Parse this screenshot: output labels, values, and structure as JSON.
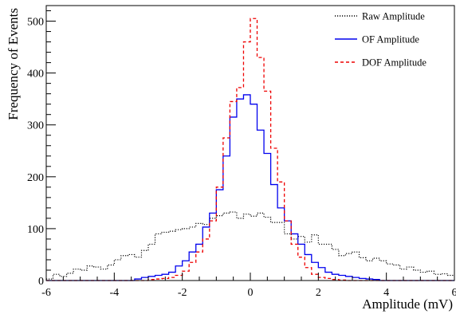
{
  "chart_data": {
    "type": "line",
    "subtype": "step-histogram",
    "xlabel": "Amplitude (mV)",
    "ylabel": "Frequency of Events",
    "xlim": [
      -6,
      6
    ],
    "ylim": [
      0,
      530
    ],
    "x_ticks": [
      -6,
      -4,
      -2,
      0,
      2,
      4,
      6
    ],
    "y_ticks": [
      0,
      100,
      200,
      300,
      400,
      500
    ],
    "grid": false,
    "legend_position": "top-right",
    "bin_width": 0.2,
    "x": [
      -5.9,
      -5.7,
      -5.5,
      -5.3,
      -5.1,
      -4.9,
      -4.7,
      -4.5,
      -4.3,
      -4.1,
      -3.9,
      -3.7,
      -3.5,
      -3.3,
      -3.1,
      -2.9,
      -2.7,
      -2.5,
      -2.3,
      -2.1,
      -1.9,
      -1.7,
      -1.5,
      -1.3,
      -1.1,
      -0.9,
      -0.7,
      -0.5,
      -0.3,
      -0.1,
      0.1,
      0.3,
      0.5,
      0.7,
      0.9,
      1.1,
      1.3,
      1.5,
      1.7,
      1.9,
      2.1,
      2.3,
      2.5,
      2.7,
      2.9,
      3.1,
      3.3,
      3.5,
      3.7,
      3.9,
      4.1,
      4.3,
      4.5,
      4.7,
      4.9,
      5.1,
      5.3,
      5.5,
      5.7,
      5.9
    ],
    "series": [
      {
        "name": "Raw Amplitude",
        "color": "#000000",
        "dash": "dotted",
        "values": [
          3,
          12,
          8,
          14,
          22,
          20,
          28,
          26,
          22,
          30,
          40,
          48,
          50,
          45,
          58,
          70,
          90,
          93,
          95,
          98,
          100,
          103,
          110,
          108,
          120,
          125,
          130,
          132,
          120,
          128,
          124,
          130,
          122,
          112,
          112,
          90,
          80,
          85,
          74,
          88,
          70,
          70,
          60,
          48,
          52,
          55,
          44,
          38,
          43,
          38,
          32,
          30,
          22,
          26,
          20,
          16,
          18,
          12,
          13,
          10
        ]
      },
      {
        "name": "OF Amplitude",
        "color": "#0000ee",
        "dash": "solid",
        "values": [
          0,
          0,
          0,
          0,
          0,
          0,
          0,
          0,
          0,
          0,
          0,
          0,
          0,
          3,
          6,
          8,
          10,
          12,
          16,
          28,
          38,
          55,
          70,
          103,
          130,
          175,
          240,
          315,
          350,
          358,
          340,
          290,
          245,
          185,
          140,
          115,
          90,
          70,
          50,
          35,
          25,
          16,
          12,
          10,
          8,
          6,
          4,
          3,
          2,
          0,
          0,
          0,
          0,
          0,
          0,
          0,
          0,
          0,
          0,
          0
        ]
      },
      {
        "name": "DOF Amplitude",
        "color": "#ee0000",
        "dash": "dashed",
        "values": [
          0,
          0,
          0,
          0,
          0,
          0,
          0,
          0,
          0,
          0,
          0,
          0,
          0,
          0,
          0,
          2,
          3,
          4,
          6,
          10,
          18,
          35,
          55,
          80,
          115,
          180,
          275,
          345,
          372,
          460,
          505,
          430,
          365,
          255,
          190,
          115,
          70,
          45,
          25,
          12,
          6,
          4,
          2,
          1,
          0,
          0,
          0,
          0,
          0,
          0,
          0,
          0,
          0,
          0,
          0,
          0,
          0,
          0,
          0,
          0
        ]
      }
    ]
  }
}
